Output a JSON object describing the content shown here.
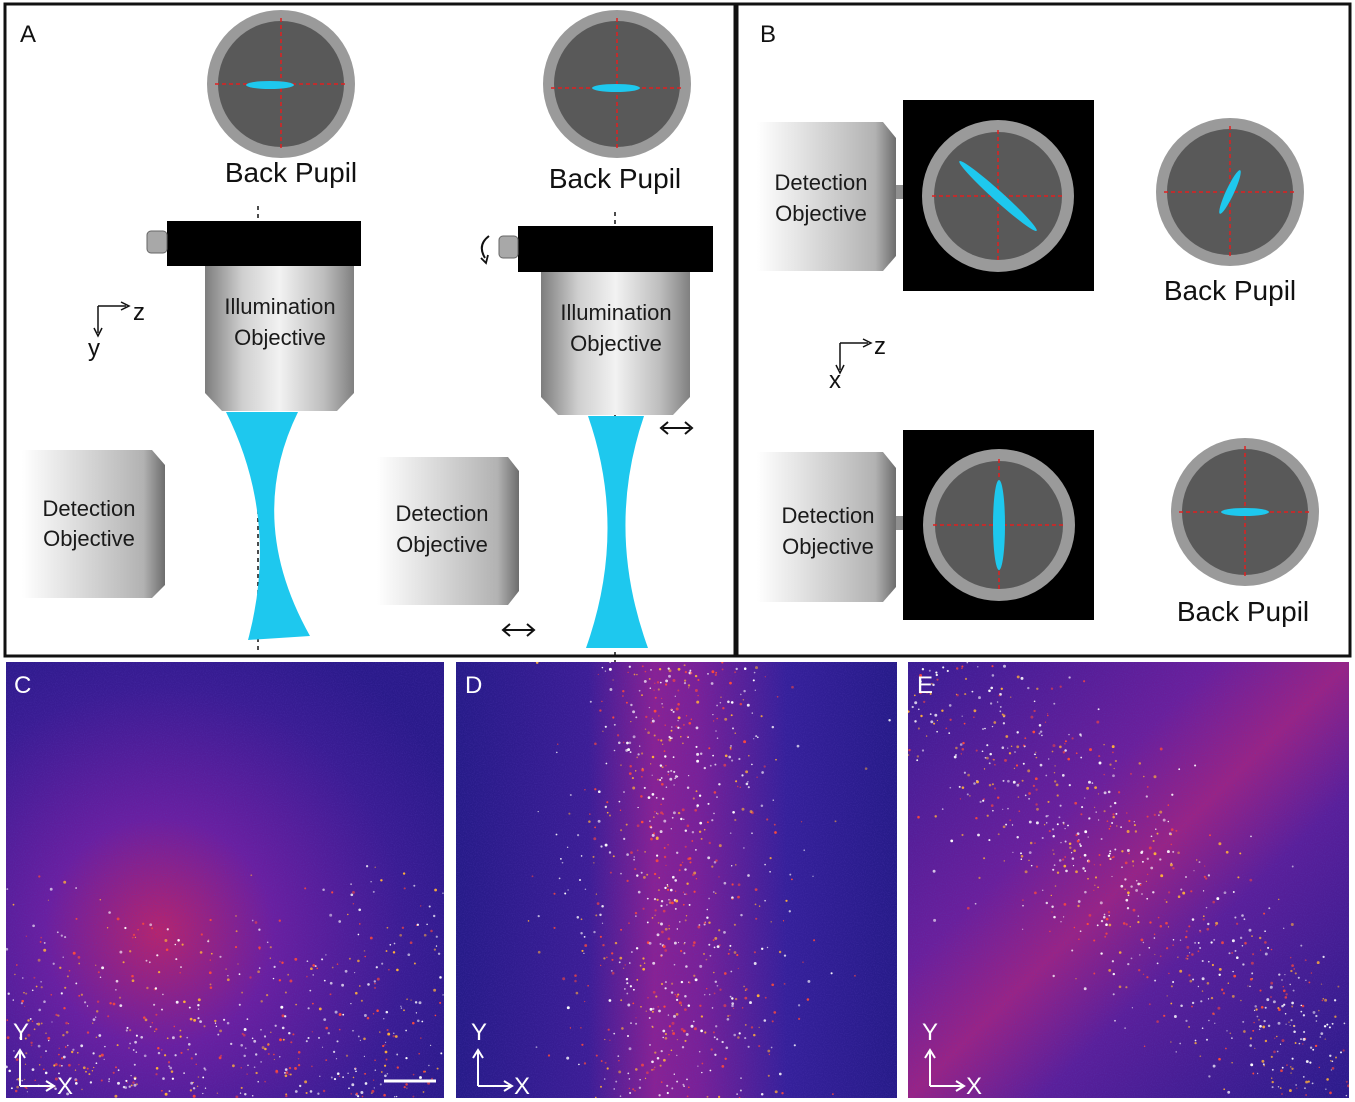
{
  "panel_a": {
    "letter": "A",
    "left": {
      "pupil_label": "Back Pupil",
      "illumination_line1": "Illumination",
      "illumination_line2": "Objective",
      "detection_line1": "Detection",
      "detection_line2": "Objective"
    },
    "right": {
      "pupil_label": "Back Pupil",
      "illumination_line1": "Illumination",
      "illumination_line2": "Objective",
      "detection_line1": "Detection",
      "detection_line2": "Objective"
    },
    "axes": {
      "horizontal": "z",
      "vertical": "y"
    }
  },
  "panel_b": {
    "letter": "B",
    "top": {
      "detection_line1": "Detection",
      "detection_line2": "Objective",
      "pupil_label": "Back Pupil"
    },
    "bottom": {
      "detection_line1": "Detection",
      "detection_line2": "Objective",
      "pupil_label": "Back Pupil"
    },
    "axes": {
      "horizontal": "z",
      "vertical": "x"
    }
  },
  "images": [
    {
      "letter": "C",
      "axis_y": "Y",
      "axis_x": "X"
    },
    {
      "letter": "D",
      "axis_y": "Y",
      "axis_x": "X"
    },
    {
      "letter": "E",
      "axis_y": "Y",
      "axis_x": "X"
    }
  ],
  "colors": {
    "beam": "#1ec8ee",
    "pupil_ring": "#9a9a9a",
    "pupil_inner": "#595959",
    "crosshair": "#e02020",
    "mount": "#000000",
    "image_bg": "#2a1a8a"
  }
}
